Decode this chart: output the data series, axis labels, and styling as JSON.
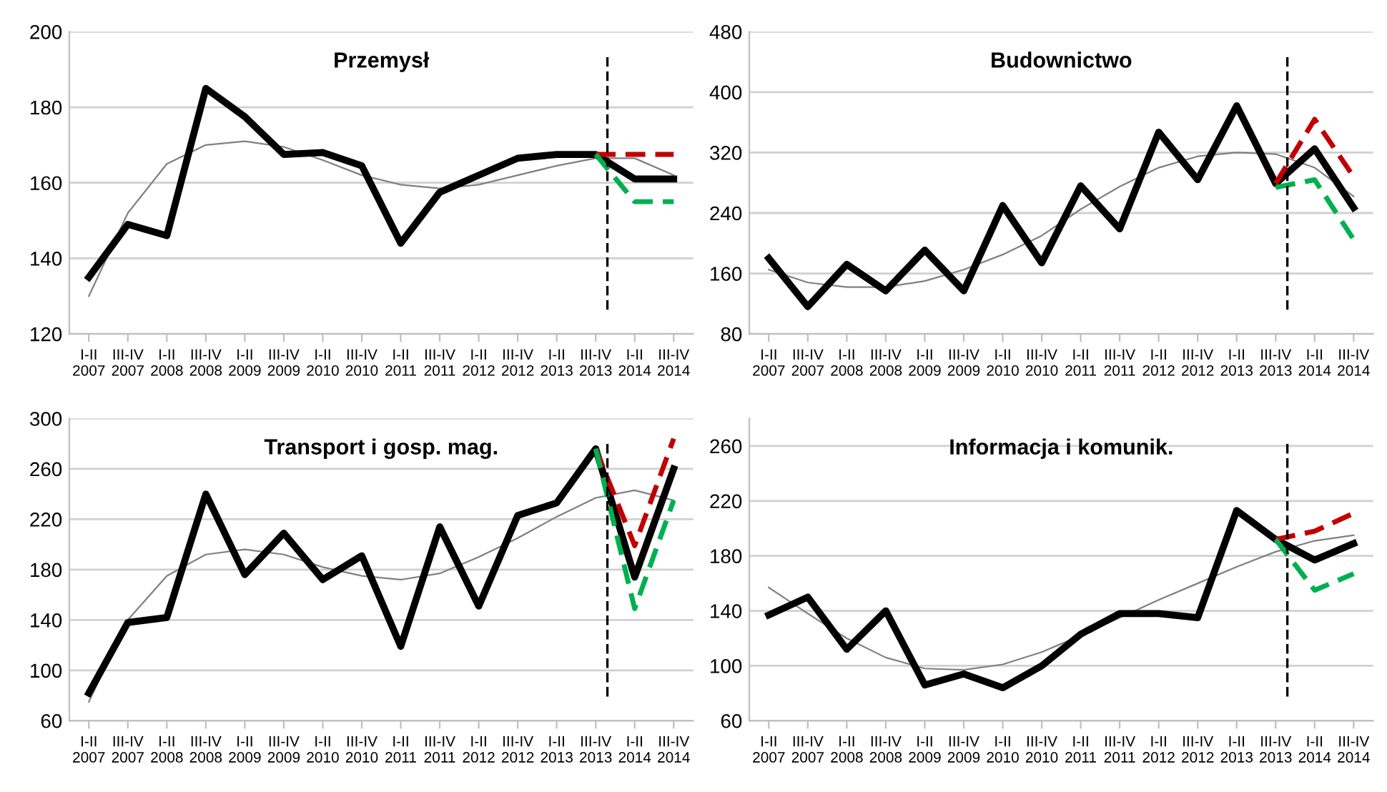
{
  "chart_data": [
    {
      "type": "line",
      "title": "Przemysł",
      "categories": [
        "I-II\n2007",
        "III-IV\n2007",
        "I-II\n2008",
        "III-IV\n2008",
        "I-II\n2009",
        "III-IV\n2009",
        "I-II\n2010",
        "III-IV\n2010",
        "I-II\n2011",
        "III-IV\n2011",
        "I-II\n2012",
        "III-IV\n2012",
        "I-II\n2013",
        "III-IV\n2013",
        "I-II\n2014",
        "III-IV\n2014"
      ],
      "ylim": [
        120,
        200
      ],
      "yticks": [
        120,
        140,
        160,
        180,
        200
      ],
      "grid": "y",
      "legend": false,
      "series": [
        {
          "color": "#808080",
          "line_style": "solid",
          "values": [
            130,
            152,
            165,
            170,
            171,
            169.5,
            166,
            162,
            159.5,
            158.5,
            159.5,
            162,
            164.5,
            166.5,
            166.5,
            162
          ]
        },
        {
          "color": "#000000",
          "line_style": "solid",
          "values": [
            135,
            149,
            146,
            185,
            177.5,
            167.5,
            168,
            164.5,
            144,
            157.5,
            162,
            166.5,
            167.5,
            167.5,
            161,
            161
          ]
        },
        {
          "color": "#c00000",
          "line_style": "dashed",
          "values": [
            null,
            null,
            null,
            null,
            null,
            null,
            null,
            null,
            null,
            null,
            null,
            null,
            null,
            167.5,
            167.5,
            167.5
          ]
        },
        {
          "color": "#00b050",
          "line_style": "dashed",
          "values": [
            null,
            null,
            null,
            null,
            null,
            null,
            null,
            null,
            null,
            null,
            null,
            null,
            null,
            167.5,
            155,
            155
          ]
        }
      ],
      "ref_lines": [
        {
          "axis": "x",
          "value": "III-IV\n2013",
          "line_style": "dashed",
          "color": "#000000"
        }
      ]
    },
    {
      "type": "line",
      "title": "Budownictwo",
      "categories": [
        "I-II\n2007",
        "III-IV\n2007",
        "I-II\n2008",
        "III-IV\n2008",
        "I-II\n2009",
        "III-IV\n2009",
        "I-II\n2010",
        "III-IV\n2010",
        "I-II\n2011",
        "III-IV\n2011",
        "I-II\n2012",
        "III-IV\n2012",
        "I-II\n2013",
        "III-IV\n2013",
        "I-II\n2014",
        "III-IV\n2014"
      ],
      "ylim": [
        80,
        480
      ],
      "yticks": [
        80,
        160,
        240,
        320,
        400,
        480
      ],
      "grid": "y",
      "legend": false,
      "series": [
        {
          "color": "#808080",
          "line_style": "solid",
          "values": [
            165,
            148,
            142,
            142,
            150,
            165,
            185,
            210,
            245,
            275,
            300,
            315,
            320,
            318,
            300,
            262
          ]
        },
        {
          "color": "#000000",
          "line_style": "solid",
          "values": [
            180,
            116,
            172,
            137,
            191,
            137,
            250,
            174,
            276,
            219,
            347,
            284,
            382,
            279,
            325,
            247
          ]
        },
        {
          "color": "#c00000",
          "line_style": "dashed",
          "values": [
            null,
            null,
            null,
            null,
            null,
            null,
            null,
            null,
            null,
            null,
            null,
            null,
            null,
            279,
            364,
            288
          ]
        },
        {
          "color": "#00b050",
          "line_style": "dashed",
          "values": [
            null,
            null,
            null,
            null,
            null,
            null,
            null,
            null,
            null,
            null,
            null,
            null,
            null,
            274,
            284,
            205
          ]
        }
      ],
      "ref_lines": [
        {
          "axis": "x",
          "value": "III-IV\n2013",
          "line_style": "dashed",
          "color": "#000000"
        }
      ]
    },
    {
      "type": "line",
      "title": "Transport i gosp. mag.",
      "categories": [
        "I-II\n2007",
        "III-IV\n2007",
        "I-II\n2008",
        "III-IV\n2008",
        "I-II\n2009",
        "III-IV\n2009",
        "I-II\n2010",
        "III-IV\n2010",
        "I-II\n2011",
        "III-IV\n2011",
        "I-II\n2012",
        "III-IV\n2012",
        "I-II\n2013",
        "III-IV\n2013",
        "I-II\n2014",
        "III-IV\n2014"
      ],
      "ylim": [
        60,
        300
      ],
      "yticks": [
        60,
        100,
        140,
        180,
        220,
        260,
        300
      ],
      "grid": "y",
      "legend": false,
      "series": [
        {
          "color": "#808080",
          "line_style": "solid",
          "values": [
            75,
            140,
            175,
            192,
            196,
            192,
            182,
            175,
            172,
            177,
            190,
            205,
            222,
            237,
            243,
            235
          ]
        },
        {
          "color": "#000000",
          "line_style": "solid",
          "values": [
            82,
            138,
            142,
            240,
            176,
            209,
            172,
            191,
            119,
            214,
            151,
            223,
            233,
            276,
            174,
            260
          ]
        },
        {
          "color": "#c00000",
          "line_style": "dashed",
          "values": [
            null,
            null,
            null,
            null,
            null,
            null,
            null,
            null,
            null,
            null,
            null,
            null,
            null,
            276,
            199,
            284
          ]
        },
        {
          "color": "#00b050",
          "line_style": "dashed",
          "values": [
            null,
            null,
            null,
            null,
            null,
            null,
            null,
            null,
            null,
            null,
            null,
            null,
            null,
            276,
            149,
            235
          ]
        }
      ],
      "ref_lines": [
        {
          "axis": "x",
          "value": "III-IV\n2013",
          "line_style": "dashed",
          "color": "#000000"
        }
      ]
    },
    {
      "type": "line",
      "title": "Informacja i komunik.",
      "categories": [
        "I-II\n2007",
        "III-IV\n2007",
        "I-II\n2008",
        "III-IV\n2008",
        "I-II\n2009",
        "III-IV\n2009",
        "I-II\n2010",
        "III-IV\n2010",
        "I-II\n2011",
        "III-IV\n2011",
        "I-II\n2012",
        "III-IV\n2012",
        "I-II\n2013",
        "III-IV\n2013",
        "I-II\n2014",
        "III-IV\n2014"
      ],
      "ylim": [
        60,
        280
      ],
      "yticks": [
        60,
        100,
        140,
        180,
        220,
        260
      ],
      "grid": "y",
      "legend": false,
      "series": [
        {
          "color": "#808080",
          "line_style": "solid",
          "values": [
            157,
            138,
            120,
            106,
            98,
            97,
            101,
            110,
            122,
            135,
            148,
            160,
            172,
            183,
            191,
            195
          ]
        },
        {
          "color": "#000000",
          "line_style": "solid",
          "values": [
            137,
            150,
            112,
            140,
            86,
            94,
            84,
            100,
            123,
            138,
            138,
            135,
            213,
            192,
            177,
            189
          ]
        },
        {
          "color": "#c00000",
          "line_style": "dashed",
          "values": [
            null,
            null,
            null,
            null,
            null,
            null,
            null,
            null,
            null,
            null,
            null,
            null,
            null,
            192,
            198,
            211
          ]
        },
        {
          "color": "#00b050",
          "line_style": "dashed",
          "values": [
            null,
            null,
            null,
            null,
            null,
            null,
            null,
            null,
            null,
            null,
            null,
            null,
            null,
            192,
            155,
            167
          ]
        }
      ],
      "ref_lines": [
        {
          "axis": "x",
          "value": "III-IV\n2013",
          "line_style": "dashed",
          "color": "#000000"
        }
      ]
    }
  ]
}
